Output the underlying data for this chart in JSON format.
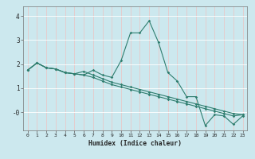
{
  "title": "",
  "xlabel": "Humidex (Indice chaleur)",
  "bg_color": "#cce8ee",
  "grid_color": "#ffffff",
  "line_color": "#2e7d6e",
  "xlim": [
    -0.5,
    23.5
  ],
  "ylim": [
    -0.75,
    4.4
  ],
  "xticks": [
    0,
    1,
    2,
    3,
    4,
    5,
    6,
    7,
    8,
    9,
    10,
    11,
    12,
    13,
    14,
    15,
    16,
    17,
    18,
    19,
    20,
    21,
    22,
    23
  ],
  "yticks": [
    0,
    1,
    2,
    3,
    4
  ],
  "ytick_labels": [
    "-0",
    "1",
    "2",
    "3",
    "4"
  ],
  "series": [
    [
      1.75,
      2.05,
      1.85,
      1.8,
      1.65,
      1.6,
      1.55,
      1.75,
      1.55,
      1.45,
      2.15,
      3.3,
      3.3,
      3.8,
      2.9,
      1.65,
      1.3,
      0.65,
      0.65,
      -0.55,
      -0.1,
      -0.15,
      -0.5,
      -0.15
    ],
    [
      1.75,
      2.05,
      1.85,
      1.8,
      1.65,
      1.6,
      1.7,
      1.55,
      1.4,
      1.25,
      1.15,
      1.05,
      0.95,
      0.85,
      0.75,
      0.65,
      0.55,
      0.45,
      0.35,
      0.25,
      0.15,
      0.05,
      -0.05,
      -0.1
    ],
    [
      1.75,
      2.05,
      1.85,
      1.8,
      1.65,
      1.6,
      1.55,
      1.45,
      1.3,
      1.15,
      1.05,
      0.95,
      0.85,
      0.75,
      0.65,
      0.55,
      0.45,
      0.35,
      0.25,
      0.15,
      0.05,
      -0.05,
      -0.15,
      -0.1
    ]
  ]
}
